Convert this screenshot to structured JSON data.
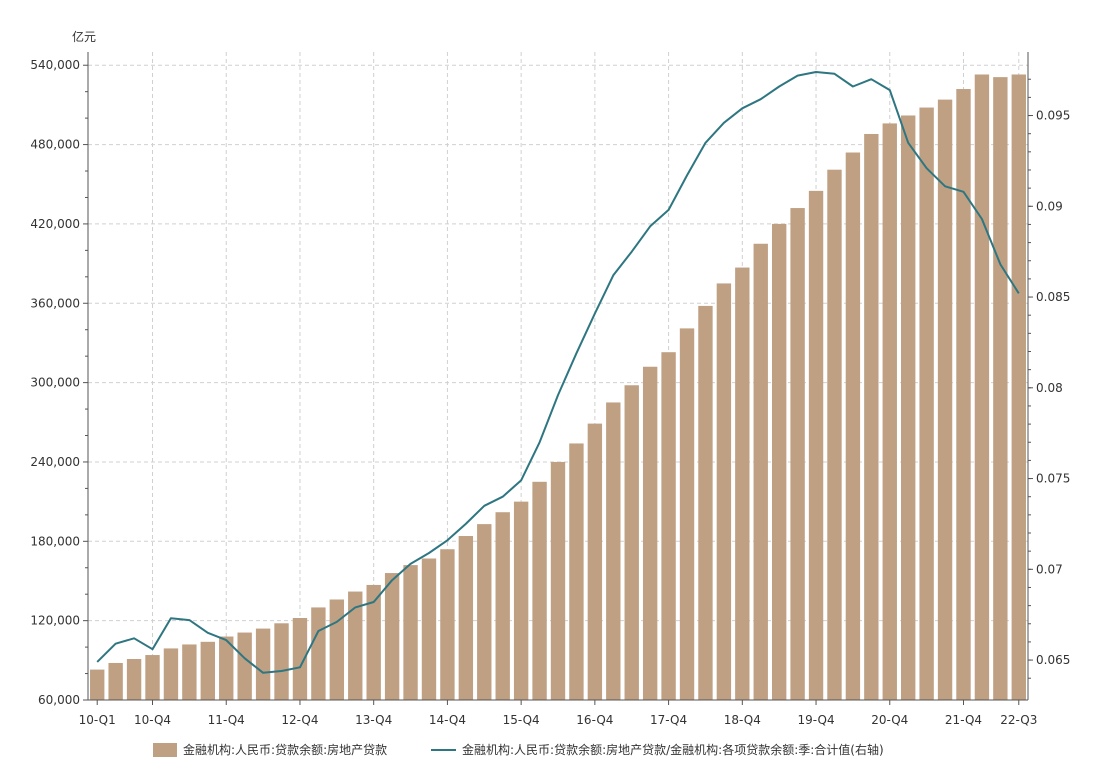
{
  "chart_data": {
    "type": "bar",
    "unit_left": "亿元",
    "x_tick_labels": [
      "10-Q1",
      "10-Q4",
      "11-Q4",
      "12-Q4",
      "13-Q4",
      "14-Q4",
      "15-Q4",
      "16-Q4",
      "17-Q4",
      "18-Q4",
      "19-Q4",
      "20-Q4",
      "21-Q4",
      "22-Q3"
    ],
    "y_left_ticks": [
      "60,000",
      "120,000",
      "180,000",
      "240,000",
      "300,000",
      "360,000",
      "420,000",
      "480,000",
      "540,000"
    ],
    "y_left_lim": [
      60000,
      550000
    ],
    "y_right_ticks": [
      "0.065",
      "0.07",
      "0.075",
      "0.08",
      "0.085",
      "0.09",
      "0.095"
    ],
    "y_right_lim": [
      0.0628,
      0.0985
    ],
    "quarters": [
      "10-Q1",
      "10-Q2",
      "10-Q3",
      "10-Q4",
      "11-Q1",
      "11-Q2",
      "11-Q3",
      "11-Q4",
      "12-Q1",
      "12-Q2",
      "12-Q3",
      "12-Q4",
      "13-Q1",
      "13-Q2",
      "13-Q3",
      "13-Q4",
      "14-Q1",
      "14-Q2",
      "14-Q3",
      "14-Q4",
      "15-Q1",
      "15-Q2",
      "15-Q3",
      "15-Q4",
      "16-Q1",
      "16-Q2",
      "16-Q3",
      "16-Q4",
      "17-Q1",
      "17-Q2",
      "17-Q3",
      "17-Q4",
      "18-Q1",
      "18-Q2",
      "18-Q3",
      "18-Q4",
      "19-Q1",
      "19-Q2",
      "19-Q3",
      "19-Q4",
      "20-Q1",
      "20-Q2",
      "20-Q3",
      "20-Q4",
      "21-Q1",
      "21-Q2",
      "21-Q3",
      "21-Q4",
      "22-Q1",
      "22-Q2",
      "22-Q3"
    ],
    "series": [
      {
        "name": "金融机构:人民币:贷款余额:房地产贷款",
        "type": "bar",
        "axis": "left",
        "color": "#bfa083",
        "values": [
          83000,
          88000,
          91000,
          94000,
          99000,
          102000,
          104000,
          108000,
          111000,
          114000,
          118000,
          122000,
          130000,
          136000,
          142000,
          147000,
          156000,
          162000,
          167000,
          174000,
          184000,
          193000,
          202000,
          210000,
          225000,
          240000,
          254000,
          269000,
          285000,
          298000,
          312000,
          323000,
          341000,
          358000,
          375000,
          387000,
          405000,
          420000,
          432000,
          445000,
          461000,
          474000,
          488000,
          496000,
          502000,
          508000,
          514000,
          522000,
          533000,
          531000,
          533000
        ]
      },
      {
        "name": "金融机构:人民币:贷款余额:房地产贷款/金融机构:各项贷款余额:季:合计值(右轴)",
        "type": "line",
        "axis": "right",
        "color": "#2e7681",
        "values": [
          0.0649,
          0.0659,
          0.0662,
          0.0656,
          0.0673,
          0.0672,
          0.0665,
          0.0661,
          0.0651,
          0.0643,
          0.0644,
          0.0646,
          0.0666,
          0.0671,
          0.0679,
          0.0682,
          0.0694,
          0.0703,
          0.0709,
          0.0716,
          0.0725,
          0.0735,
          0.074,
          0.0749,
          0.077,
          0.0796,
          0.0819,
          0.0841,
          0.0862,
          0.0875,
          0.0889,
          0.0898,
          0.0917,
          0.0935,
          0.0946,
          0.0954,
          0.0959,
          0.0966,
          0.0972,
          0.0974,
          0.0973,
          0.0966,
          0.097,
          0.0964,
          0.0935,
          0.0921,
          0.0911,
          0.0908,
          0.0893,
          0.0868,
          0.0852
        ]
      }
    ],
    "legend_position": "bottom-center",
    "grid": true
  }
}
